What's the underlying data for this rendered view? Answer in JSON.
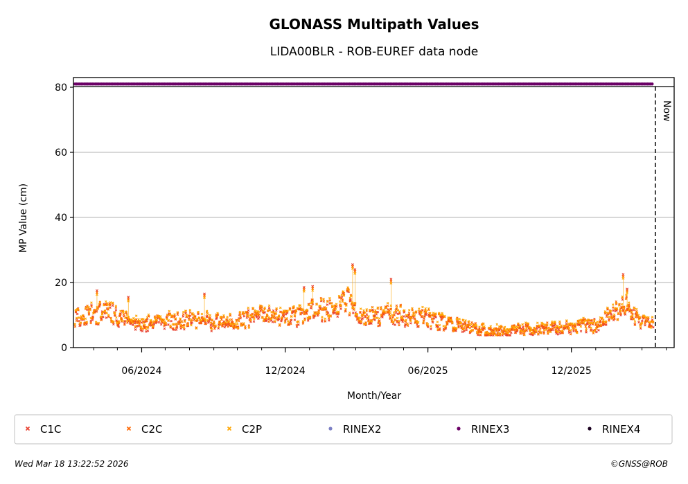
{
  "chart_data": {
    "type": "scatter",
    "title": "GLONASS Multipath Values",
    "subtitle": "LIDA00BLR - ROB-EUREF data node",
    "xlabel": "Month/Year",
    "ylabel": "MP Value (cm)",
    "ylim": [
      0,
      80
    ],
    "yticks": [
      "0",
      "20",
      "40",
      "60",
      "80"
    ],
    "xlim": [
      "2024-03-06",
      "2026-04-11"
    ],
    "xticks": [
      {
        "date": "2024-06-01",
        "label": "06/2024"
      },
      {
        "date": "2024-12-01",
        "label": "12/2024"
      },
      {
        "date": "2025-06-01",
        "label": "06/2025"
      },
      {
        "date": "2025-12-01",
        "label": "12/2025"
      }
    ],
    "grid": "horizontal",
    "now_label": "Now",
    "now_date": "2026-03-18",
    "rinex_band_value": 81,
    "series": [
      {
        "name": "C1C",
        "marker": "x",
        "color": "#e8402f"
      },
      {
        "name": "C2C",
        "marker": "x",
        "color": "#ff6600"
      },
      {
        "name": "C2P",
        "marker": "x",
        "color": "#ffa500"
      },
      {
        "name": "RINEX2",
        "marker": "dot",
        "color": "#7b7fc4"
      },
      {
        "name": "RINEX3",
        "marker": "dot",
        "color": "#6b0066"
      },
      {
        "name": "RINEX4",
        "marker": "dot",
        "color": "#1a0020"
      }
    ],
    "trend": [
      [
        "2024-03-10",
        9.5
      ],
      [
        "2024-04-01",
        10.5
      ],
      [
        "2024-04-20",
        11
      ],
      [
        "2024-05-10",
        9
      ],
      [
        "2024-05-25",
        7
      ],
      [
        "2024-06-10",
        7.5
      ],
      [
        "2024-07-01",
        9
      ],
      [
        "2024-08-01",
        8.5
      ],
      [
        "2024-09-01",
        8
      ],
      [
        "2024-10-01",
        8
      ],
      [
        "2024-11-01",
        10
      ],
      [
        "2024-12-01",
        9
      ],
      [
        "2024-12-20",
        10
      ],
      [
        "2025-01-10",
        12
      ],
      [
        "2025-02-01",
        11
      ],
      [
        "2025-02-20",
        15
      ],
      [
        "2025-03-05",
        9
      ],
      [
        "2025-04-01",
        10
      ],
      [
        "2025-05-01",
        10
      ],
      [
        "2025-06-01",
        9
      ],
      [
        "2025-07-01",
        7
      ],
      [
        "2025-08-01",
        5.5
      ],
      [
        "2025-09-01",
        5
      ],
      [
        "2025-10-01",
        5.5
      ],
      [
        "2025-11-01",
        6
      ],
      [
        "2025-12-01",
        6
      ],
      [
        "2026-01-01",
        7
      ],
      [
        "2026-01-20",
        11
      ],
      [
        "2026-02-10",
        13
      ],
      [
        "2026-02-25",
        8
      ],
      [
        "2026-03-15",
        7
      ]
    ],
    "spikes": [
      [
        "2024-04-05",
        17.5
      ],
      [
        "2024-05-15",
        15.5
      ],
      [
        "2024-08-20",
        16.5
      ],
      [
        "2024-12-25",
        18.5
      ],
      [
        "2025-01-05",
        18.8
      ],
      [
        "2025-02-25",
        25.5
      ],
      [
        "2025-02-28",
        24
      ],
      [
        "2025-04-15",
        21
      ],
      [
        "2026-02-05",
        22.5
      ],
      [
        "2026-02-10",
        18
      ]
    ]
  },
  "footer": {
    "timestamp": "Wed Mar 18 13:22:52 2026",
    "copyright": "©GNSS@ROB"
  }
}
